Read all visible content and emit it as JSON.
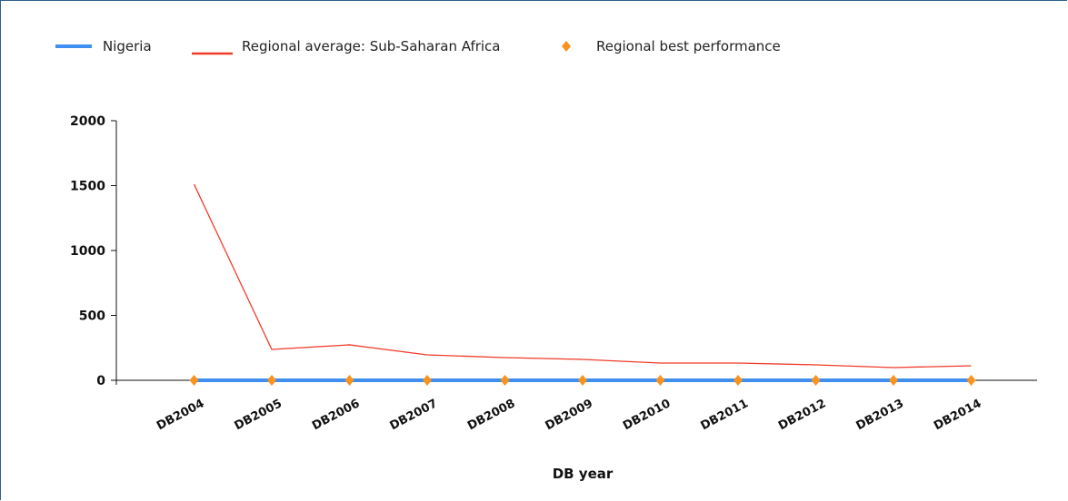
{
  "chart_data": {
    "type": "line",
    "categories": [
      "DB2004",
      "DB2005",
      "DB2006",
      "DB2007",
      "DB2008",
      "DB2009",
      "DB2010",
      "DB2011",
      "DB2012",
      "DB2013",
      "DB2014"
    ],
    "series": [
      {
        "name": "Nigeria",
        "color": "#3f8ef0",
        "style": "line",
        "values": [
          0,
          0,
          0,
          0,
          0,
          0,
          0,
          0,
          0,
          0,
          0
        ]
      },
      {
        "name": "Regional average: Sub-Saharan Africa",
        "color": "#f03c2a",
        "style": "line",
        "values": [
          1510,
          238,
          273,
          196,
          175,
          161,
          133,
          133,
          119,
          98,
          112
        ]
      },
      {
        "name": "Regional best performance",
        "color": "#f7931e",
        "style": "marker",
        "values": [
          0,
          0,
          0,
          0,
          0,
          0,
          0,
          0,
          0,
          0,
          0
        ]
      }
    ],
    "x_label": "DB year",
    "ylim": [
      0,
      2000
    ],
    "yticks": [
      0,
      500,
      1000,
      1500,
      2000
    ]
  }
}
